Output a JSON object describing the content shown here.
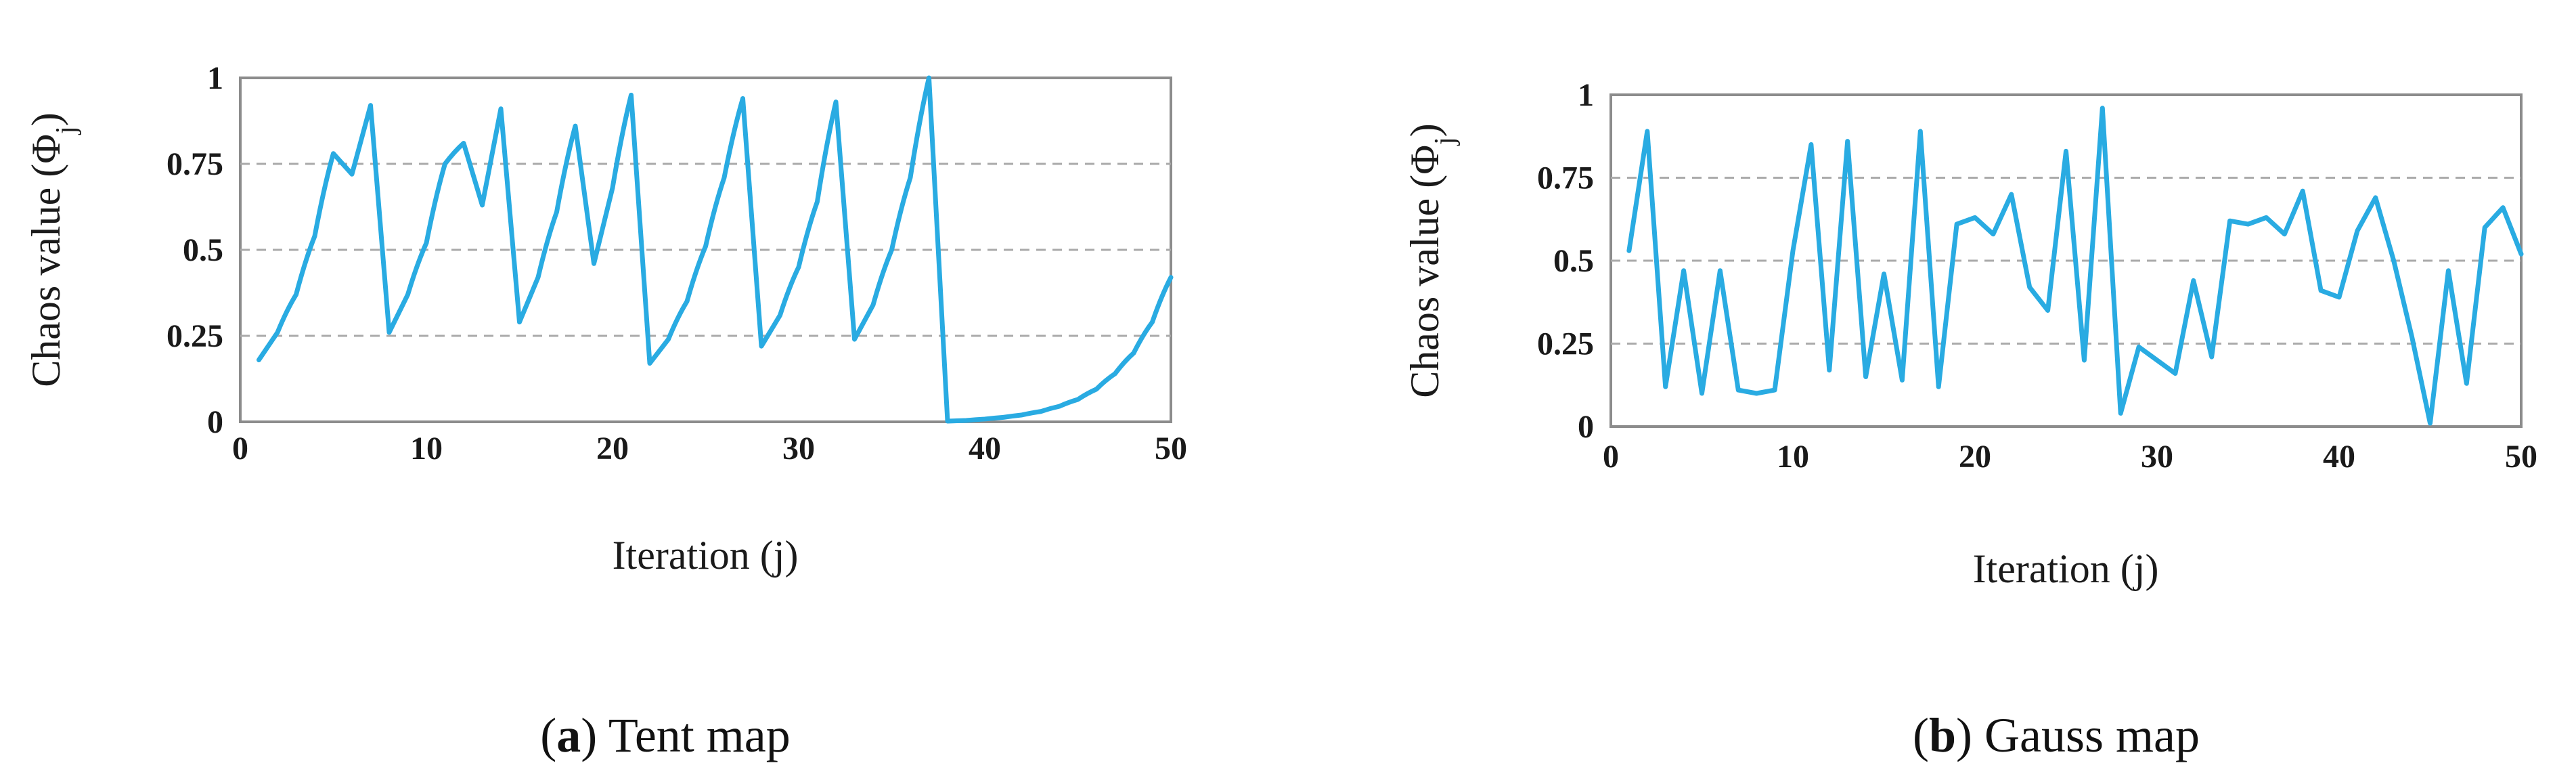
{
  "colors": {
    "line": "#29abe2",
    "grid": "#aaaaaa",
    "axis": "#8c8c8c",
    "text": "#1a1a1a"
  },
  "panels": [
    {
      "caption_letter": "a",
      "caption_text": "Tent map"
    },
    {
      "caption_letter": "b",
      "caption_text": "Gauss map"
    }
  ],
  "chart_data": [
    {
      "type": "line",
      "title": "",
      "xlabel": "Iteration (j)",
      "ylabel": "Chaos value (Φj)",
      "xlim": [
        0,
        50
      ],
      "ylim": [
        0,
        1
      ],
      "xticks": [
        "0",
        "10",
        "20",
        "30",
        "40",
        "50"
      ],
      "yticks": [
        "0",
        "0.25",
        "0.5",
        "0.75",
        "1"
      ],
      "grid": "horizontal-dashed",
      "smooth": true,
      "x": [
        1,
        2,
        3,
        4,
        5,
        6,
        7,
        8,
        9,
        10,
        11,
        12,
        13,
        14,
        15,
        16,
        17,
        18,
        19,
        20,
        21,
        22,
        23,
        24,
        25,
        26,
        27,
        28,
        29,
        30,
        31,
        32,
        33,
        34,
        35,
        36,
        37,
        38,
        39,
        40,
        41,
        42,
        43,
        44,
        45,
        46,
        47,
        48,
        49,
        50
      ],
      "values": [
        0.18,
        0.26,
        0.37,
        0.54,
        0.78,
        0.72,
        0.92,
        0.26,
        0.37,
        0.52,
        0.75,
        0.81,
        0.63,
        0.91,
        0.29,
        0.42,
        0.61,
        0.86,
        0.46,
        0.68,
        0.95,
        0.17,
        0.24,
        0.35,
        0.51,
        0.71,
        0.94,
        0.22,
        0.31,
        0.45,
        0.64,
        0.93,
        0.24,
        0.34,
        0.5,
        0.71,
        1.0,
        0.002,
        0.004,
        0.008,
        0.013,
        0.02,
        0.03,
        0.045,
        0.065,
        0.095,
        0.14,
        0.2,
        0.29,
        0.42
      ]
    },
    {
      "type": "line",
      "title": "",
      "xlabel": "Iteration (j)",
      "ylabel": "Chaos value (Φj)",
      "xlim": [
        0,
        50
      ],
      "ylim": [
        0,
        1
      ],
      "xticks": [
        "0",
        "10",
        "20",
        "30",
        "40",
        "50"
      ],
      "yticks": [
        "0",
        "0.25",
        "0.5",
        "0.75",
        "1"
      ],
      "grid": "horizontal-dashed",
      "smooth": false,
      "x": [
        1,
        2,
        3,
        4,
        5,
        6,
        7,
        8,
        9,
        10,
        11,
        12,
        13,
        14,
        15,
        16,
        17,
        18,
        19,
        20,
        21,
        22,
        23,
        24,
        25,
        26,
        27,
        28,
        29,
        30,
        31,
        32,
        33,
        34,
        35,
        36,
        37,
        38,
        39,
        40,
        41,
        42,
        43,
        44,
        45,
        46,
        47,
        48,
        49,
        50
      ],
      "values": [
        0.53,
        0.89,
        0.12,
        0.47,
        0.1,
        0.47,
        0.11,
        0.1,
        0.11,
        0.53,
        0.85,
        0.17,
        0.86,
        0.15,
        0.46,
        0.14,
        0.89,
        0.12,
        0.61,
        0.63,
        0.58,
        0.7,
        0.42,
        0.35,
        0.83,
        0.2,
        0.96,
        0.04,
        0.24,
        0.2,
        0.16,
        0.44,
        0.21,
        0.62,
        0.61,
        0.63,
        0.58,
        0.71,
        0.41,
        0.39,
        0.59,
        0.69,
        0.5,
        0.27,
        0.01,
        0.47,
        0.13,
        0.6,
        0.66,
        0.52
      ]
    }
  ]
}
